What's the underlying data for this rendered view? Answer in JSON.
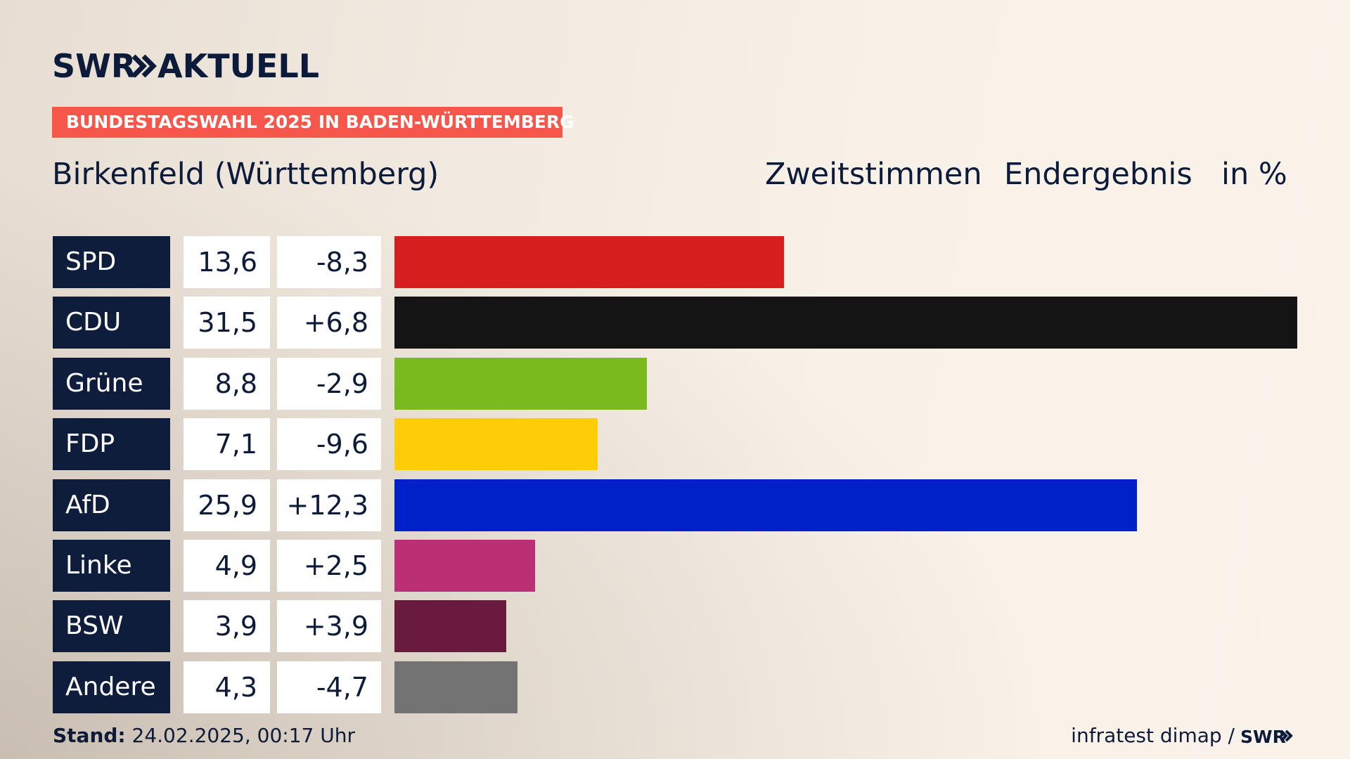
{
  "brand": {
    "logo_text": "SWR AKTUELL",
    "logo_icon": "double-chevron-icon"
  },
  "banner": {
    "text": "BUNDESTAGSWAHL 2025 IN BADEN-WÜRTTEMBERG",
    "color": "#f7564a"
  },
  "header": {
    "place": "Birkenfeld (Württemberg)",
    "vote_type": "Zweitstimmen",
    "result_type": "Endergebnis",
    "unit": "in %"
  },
  "chart_data": {
    "type": "bar",
    "orientation": "horizontal",
    "categories": [
      "SPD",
      "CDU",
      "Grüne",
      "FDP",
      "AfD",
      "Linke",
      "BSW",
      "Andere"
    ],
    "values": [
      13.6,
      31.5,
      8.8,
      7.1,
      25.9,
      4.9,
      3.9,
      4.3
    ],
    "value_labels": [
      "13,6",
      "31,5",
      "8,8",
      "7,1",
      "25,9",
      "4,9",
      "3,9",
      "4,3"
    ],
    "changes": [
      -8.3,
      6.8,
      -2.9,
      -9.6,
      12.3,
      2.5,
      3.9,
      -4.7
    ],
    "change_labels": [
      "-8,3",
      "+6,8",
      "-2,9",
      "-9,6",
      "+12,3",
      "+2,5",
      "+3,9",
      "-4,7"
    ],
    "colors": [
      "#d81f1f",
      "#141414",
      "#7aba1e",
      "#fecd07",
      "#0021c8",
      "#bb3075",
      "#6a1a3d",
      "#737373"
    ],
    "xlim": [
      0,
      31.5
    ]
  },
  "footer": {
    "stand_label": "Stand:",
    "stand_value": "24.02.2025, 00:17 Uhr",
    "source": "infratest dimap /",
    "source_logo": "SWR"
  }
}
